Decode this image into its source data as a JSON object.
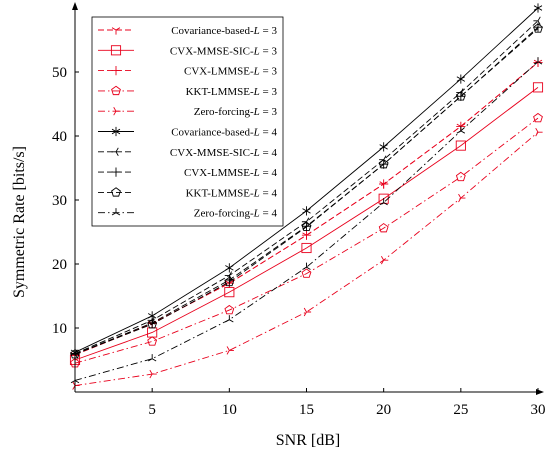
{
  "chart_data": {
    "type": "line",
    "xlabel": "SNR [dB]",
    "ylabel": "Symmetric Rate [bits/s]",
    "xlim": [
      0,
      30
    ],
    "ylim": [
      0,
      60
    ],
    "xticks": [
      5,
      10,
      15,
      20,
      25,
      30
    ],
    "yticks": [
      10,
      20,
      30,
      40,
      50
    ],
    "x": [
      0,
      5,
      10,
      15,
      20,
      25,
      30
    ],
    "grid": false,
    "legend_position": "top-left",
    "series": [
      {
        "name": "Covariance-based-L = 3",
        "label": "Covariance-based-",
        "L": "3",
        "color": "#e8001c",
        "dash": "dashed",
        "marker": "tri-down",
        "values": [
          5.8,
          10.7,
          17.0,
          24.5,
          32.5,
          41.5,
          51.5
        ]
      },
      {
        "name": "CVX-MMSE-SIC-L = 3",
        "label": "CVX-MMSE-SIC-",
        "L": "3",
        "color": "#e8001c",
        "dash": "solid",
        "marker": "square",
        "values": [
          5.0,
          9.3,
          15.6,
          22.5,
          30.2,
          38.5,
          47.6
        ]
      },
      {
        "name": "CVX-LMMSE-L = 3",
        "label": "CVX-LMMSE-",
        "L": "3",
        "color": "#e8001c",
        "dash": "dashed",
        "marker": "plus",
        "values": [
          5.8,
          10.7,
          17.0,
          24.5,
          32.5,
          41.5,
          51.5
        ]
      },
      {
        "name": "KKT-LMMSE-L = 3",
        "label": "KKT-LMMSE-",
        "L": "3",
        "color": "#e8001c",
        "dash": "dashdot",
        "marker": "pentagon",
        "values": [
          4.5,
          7.9,
          12.8,
          18.5,
          25.6,
          33.6,
          42.8
        ]
      },
      {
        "name": "Zero-forcing-L = 3",
        "label": "Zero-forcing-",
        "L": "3",
        "color": "#e8001c",
        "dash": "dashdot",
        "marker": "tri-right",
        "values": [
          1.0,
          2.8,
          6.5,
          12.5,
          20.6,
          30.3,
          40.6
        ]
      },
      {
        "name": "Covariance-based-L = 4",
        "label": "Covariance-based-",
        "L": "4",
        "color": "#000000",
        "dash": "solid",
        "marker": "star",
        "values": [
          6.2,
          11.9,
          19.4,
          28.3,
          38.3,
          48.9,
          60.0
        ]
      },
      {
        "name": "CVX-MMSE-SIC-L = 4",
        "label": "CVX-MMSE-SIC-",
        "L": "4",
        "color": "#000000",
        "dash": "dashed",
        "marker": "tri-left",
        "values": [
          6.0,
          11.2,
          18.2,
          26.6,
          36.3,
          46.8,
          58.0
        ]
      },
      {
        "name": "CVX-LMMSE-L = 4",
        "label": "CVX-LMMSE-",
        "L": "4",
        "color": "#000000",
        "dash": "dashed",
        "marker": "plus",
        "values": [
          5.9,
          10.8,
          17.5,
          25.9,
          35.6,
          46.2,
          57.0
        ]
      },
      {
        "name": "KKT-LMMSE-L = 4",
        "label": "KKT-LMMSE-",
        "L": "4",
        "color": "#000000",
        "dash": "dashed",
        "marker": "pentagon",
        "values": [
          5.9,
          10.6,
          17.2,
          25.8,
          35.6,
          46.2,
          56.8
        ]
      },
      {
        "name": "Zero-forcing-L = 4",
        "label": "Zero-forcing-",
        "L": "4",
        "color": "#000000",
        "dash": "dashdot",
        "marker": "tri-up",
        "values": [
          1.8,
          5.2,
          11.3,
          19.5,
          29.6,
          40.8,
          51.6
        ]
      }
    ]
  }
}
